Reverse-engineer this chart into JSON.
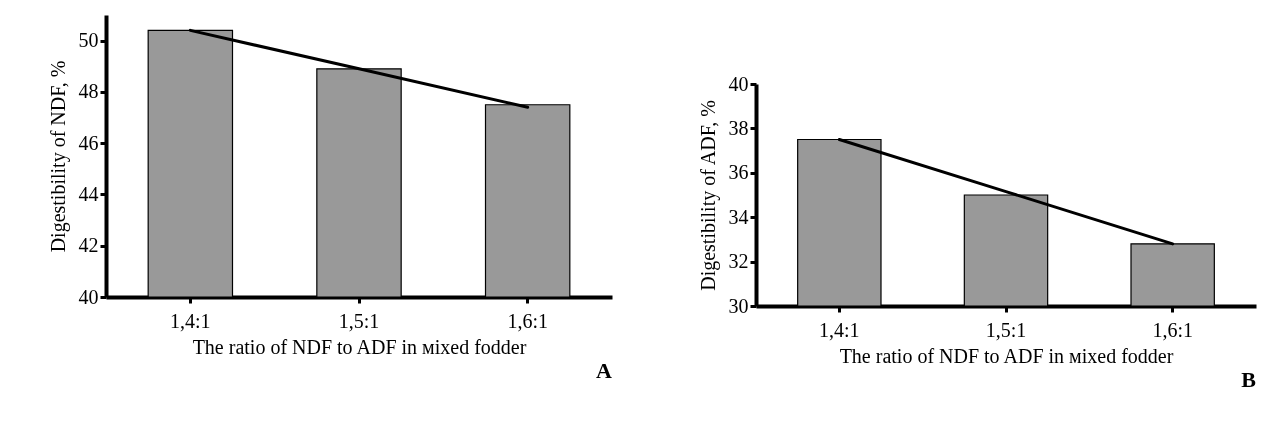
{
  "chart_data": [
    {
      "type": "bar",
      "categories": [
        "1,4:1",
        "1,5:1",
        "1,6:1"
      ],
      "xlabel": "The ratio of NDF to ADF in мixed fodder",
      "ylabel": "Digestibility of NDF, %",
      "ylim": [
        40,
        51
      ],
      "yticks": [
        40,
        42,
        44,
        46,
        48,
        50
      ],
      "annotations": [
        "A"
      ],
      "grid": false,
      "marker": "none",
      "series": [
        {
          "color": "#999999",
          "values": [
            50.4,
            48.9,
            47.5
          ]
        },
        {
          "type": "line",
          "color": "#000000",
          "values": [
            50.4,
            48.9,
            47.4
          ]
        }
      ]
    },
    {
      "type": "bar",
      "categories": [
        "1,4:1",
        "1,5:1",
        "1,6:1"
      ],
      "xlabel": "The ratio of NDF to ADF in мixed fodder",
      "ylabel": "Digestibility of ADF, %",
      "ylim": [
        30,
        40
      ],
      "yticks": [
        30,
        32,
        34,
        36,
        38,
        40
      ],
      "annotations": [
        "B"
      ],
      "grid": false,
      "marker": "none",
      "series": [
        {
          "color": "#999999",
          "values": [
            37.5,
            35.0,
            32.8
          ]
        },
        {
          "type": "line",
          "color": "#000000",
          "values": [
            37.5,
            35.15,
            32.8
          ]
        }
      ]
    }
  ]
}
